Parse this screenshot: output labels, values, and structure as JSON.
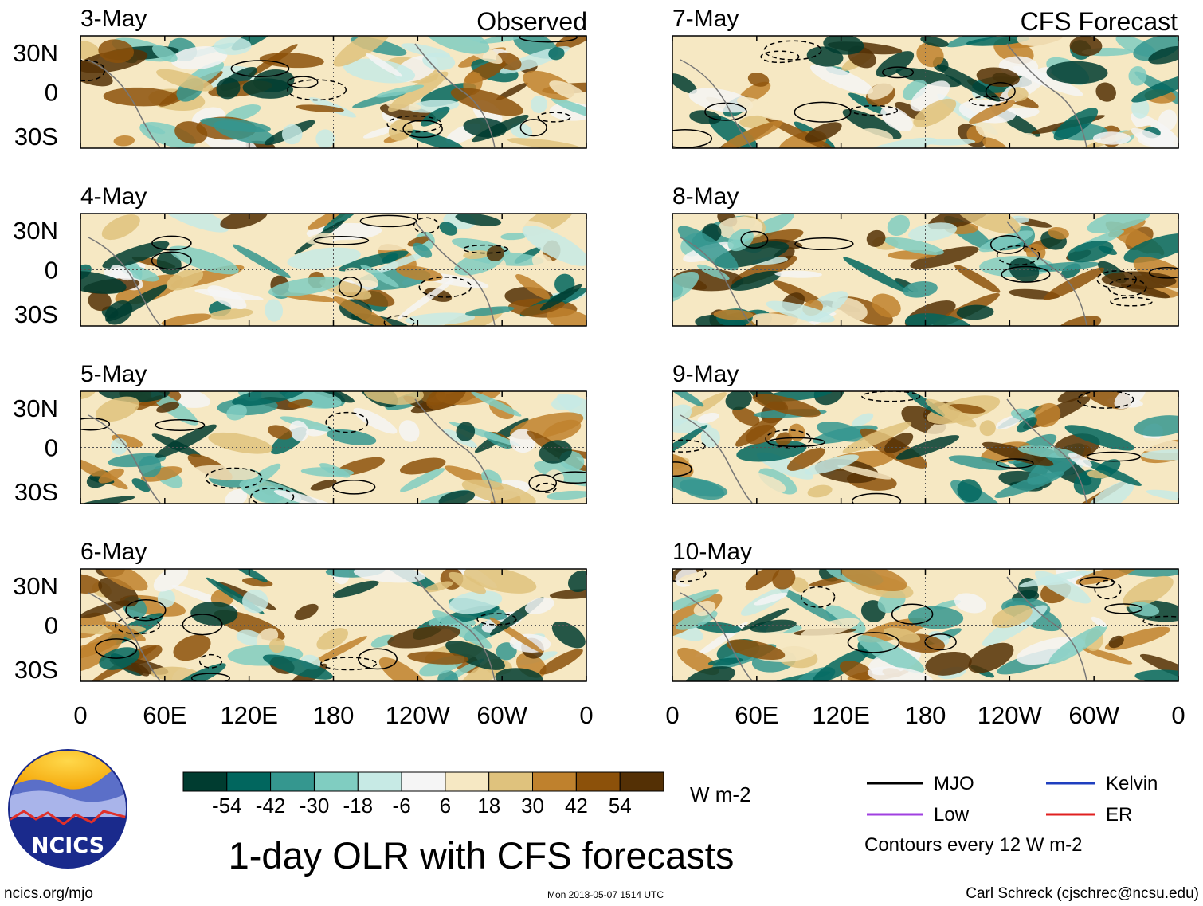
{
  "chart_data": {
    "type": "heatmap",
    "title": "1-day OLR with CFS forecasts",
    "variable": "OLR anomaly",
    "units": "W m-2",
    "columns": [
      {
        "header": "Observed",
        "dates": [
          "3-May",
          "4-May",
          "5-May",
          "6-May"
        ]
      },
      {
        "header": "CFS Forecast",
        "dates": [
          "7-May",
          "8-May",
          "9-May",
          "10-May"
        ]
      }
    ],
    "x_axis": {
      "ticks": [
        "0",
        "60E",
        "120E",
        "180",
        "120W",
        "60W",
        "0"
      ],
      "range_deg_east": [
        0,
        360
      ]
    },
    "y_axis": {
      "ticks": [
        "30N",
        "0",
        "30S"
      ],
      "range_deg": [
        -40,
        40
      ]
    },
    "colorbar": {
      "labels": [
        "-54",
        "-42",
        "-30",
        "-18",
        "-6",
        "6",
        "18",
        "30",
        "42",
        "54"
      ],
      "colors": [
        "#003c30",
        "#01665e",
        "#35978f",
        "#80cdc1",
        "#c7eae5",
        "#f5f5f5",
        "#f6e8c3",
        "#dfc27d",
        "#bf812d",
        "#8c510a",
        "#543005"
      ],
      "units": "W m-2"
    },
    "contour_legend": [
      {
        "label": "MJO",
        "color": "#000000"
      },
      {
        "label": "Kelvin",
        "color": "#1f3fbf"
      },
      {
        "label": "Low",
        "color": "#a040e0"
      },
      {
        "label": "ER",
        "color": "#e02020"
      }
    ],
    "contour_note": "Contours every 12 W m-2"
  },
  "footer": {
    "left": "ncics.org/mjo",
    "center": "Mon 2018-05-07 1514 UTC",
    "right": "Carl Schreck (cjschrec@ncsu.edu)"
  },
  "logo": {
    "text": "NCICS"
  }
}
